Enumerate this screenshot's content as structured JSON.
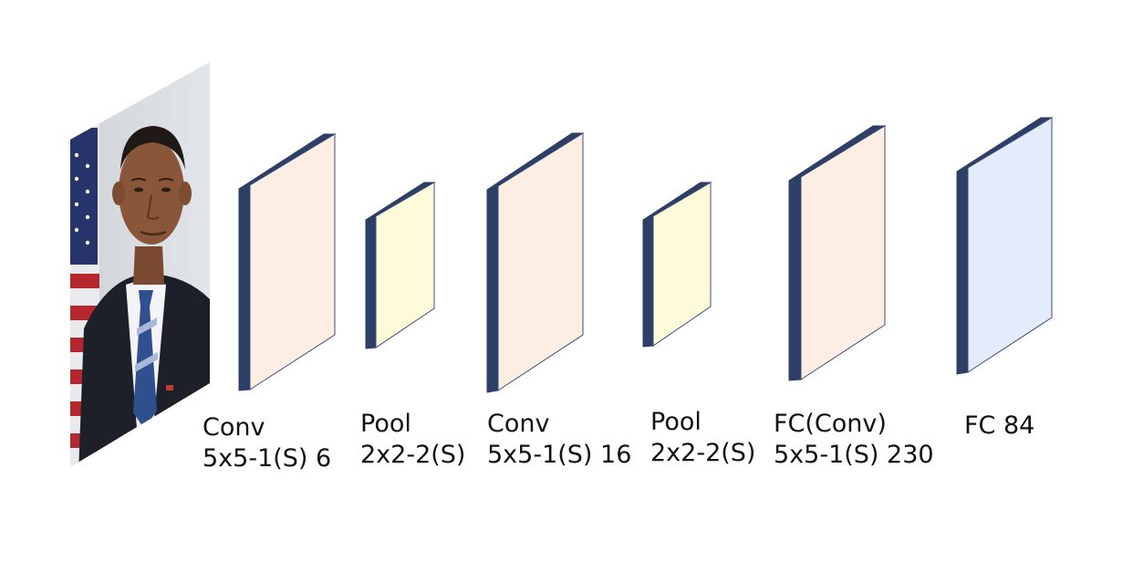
{
  "colors": {
    "edge": "#2d3f66",
    "conv_face": "#fdeee3",
    "pool_face": "#fefbd9",
    "fc_face": "#e4ebfb",
    "face_stroke": "#3a4d7a"
  },
  "input_image": {
    "icon": "portrait-photo-icon"
  },
  "layers": [
    {
      "kind": "conv",
      "lines": [
        "Conv",
        "5x5-1(S) 6"
      ]
    },
    {
      "kind": "pool",
      "lines": [
        "Pool",
        "2x2-2(S)"
      ]
    },
    {
      "kind": "conv",
      "lines": [
        "Conv",
        "5x5-1(S) 16"
      ]
    },
    {
      "kind": "pool",
      "lines": [
        "Pool",
        "2x2-2(S)"
      ]
    },
    {
      "kind": "conv",
      "lines": [
        "FC(Conv)",
        "5x5-1(S) 230"
      ]
    },
    {
      "kind": "fc",
      "lines": [
        "FC 84"
      ]
    }
  ]
}
